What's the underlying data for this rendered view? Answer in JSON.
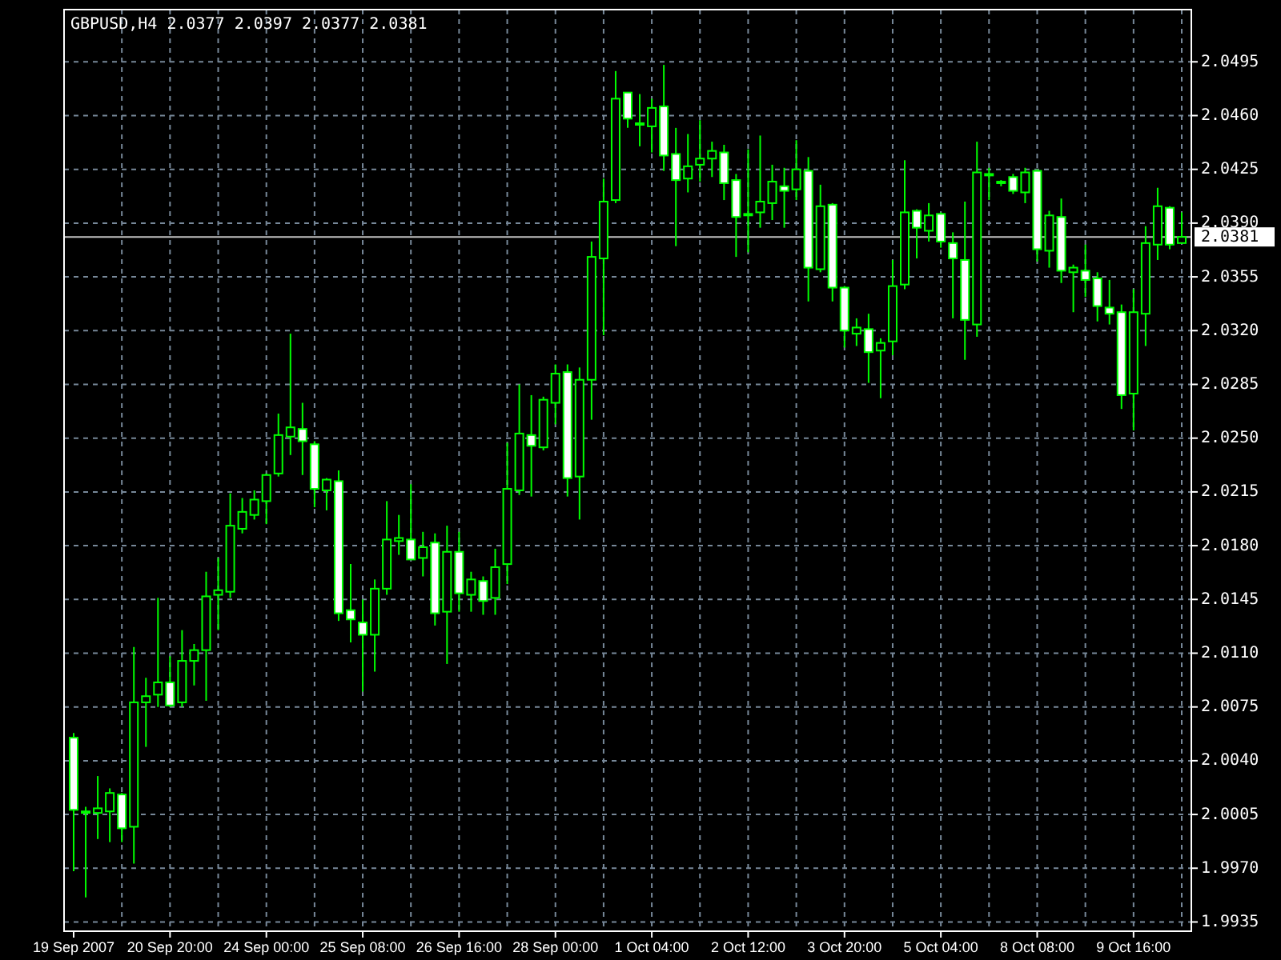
{
  "chart_data": {
    "type": "candlestick",
    "title": "GBPUSD,H4  2.0377 2.0397 2.0377 2.0381",
    "color": "#00ff00",
    "grid": true,
    "categories": [
      "19 Sep 2007",
      null,
      null,
      null,
      null,
      null,
      null,
      null,
      "20 Sep 20:00",
      null,
      null,
      null,
      null,
      null,
      null,
      null,
      "24 Sep 00:00",
      null,
      null,
      null,
      null,
      null,
      null,
      null,
      "25 Sep 08:00",
      null,
      null,
      null,
      null,
      null,
      null,
      null,
      "26 Sep 16:00",
      null,
      null,
      null,
      null,
      null,
      null,
      null,
      "28 Sep 00:00",
      null,
      null,
      null,
      null,
      null,
      null,
      null,
      "1 Oct 04:00",
      null,
      null,
      null,
      null,
      null,
      null,
      null,
      "2 Oct 12:00",
      null,
      null,
      null,
      null,
      null,
      null,
      null,
      "3 Oct 20:00",
      null,
      null,
      null,
      null,
      null,
      null,
      null,
      "5 Oct 04:00",
      null,
      null,
      null,
      null,
      null,
      null,
      null,
      "8 Oct 08:00",
      null,
      null,
      null,
      null,
      null,
      null,
      null,
      "9 Oct 16:00",
      null,
      null,
      null,
      null
    ],
    "ohlc": [
      [
        2.0055,
        2.0058,
        1.9968,
        2.0008
      ],
      [
        2.0006,
        2.001,
        1.9951,
        2.0007
      ],
      [
        2.0006,
        2.003,
        1.9989,
        2.0009
      ],
      [
        2.0007,
        2.0022,
        1.9987,
        2.0019
      ],
      [
        2.0018,
        2.0019,
        1.9987,
        1.9996
      ],
      [
        1.9997,
        2.0114,
        1.9973,
        2.0078
      ],
      [
        2.0078,
        2.0094,
        2.0049,
        2.0082
      ],
      [
        2.0083,
        2.0146,
        2.0075,
        2.0091
      ],
      [
        2.0091,
        2.0108,
        2.0075,
        2.0076
      ],
      [
        2.0078,
        2.0125,
        2.0075,
        2.0105
      ],
      [
        2.0105,
        2.0116,
        2.0089,
        2.0112
      ],
      [
        2.0112,
        2.0163,
        2.0079,
        2.0147
      ],
      [
        2.0148,
        2.0172,
        2.0125,
        2.0151
      ],
      [
        2.015,
        2.0214,
        2.0146,
        2.0193
      ],
      [
        2.0191,
        2.0211,
        2.0188,
        2.0202
      ],
      [
        2.02,
        2.0216,
        2.0197,
        2.021
      ],
      [
        2.0209,
        2.0227,
        2.0194,
        2.0226
      ],
      [
        2.0227,
        2.0266,
        2.0225,
        2.0252
      ],
      [
        2.0251,
        2.0318,
        2.0239,
        2.0257
      ],
      [
        2.0256,
        2.0273,
        2.0226,
        2.0248
      ],
      [
        2.0246,
        2.0248,
        2.0205,
        2.0217
      ],
      [
        2.0216,
        2.0224,
        2.0203,
        2.0223
      ],
      [
        2.0222,
        2.0229,
        2.0131,
        2.0136
      ],
      [
        2.0138,
        2.0168,
        2.0117,
        2.0132
      ],
      [
        2.013,
        2.0145,
        2.0085,
        2.0122
      ],
      [
        2.0122,
        2.0158,
        2.0098,
        2.0152
      ],
      [
        2.0152,
        2.0209,
        2.0148,
        2.0184
      ],
      [
        2.0183,
        2.02,
        2.0174,
        2.0185
      ],
      [
        2.0184,
        2.022,
        2.0171,
        2.0171
      ],
      [
        2.0172,
        2.0189,
        2.016,
        2.0179
      ],
      [
        2.0182,
        2.0188,
        2.0128,
        2.0136
      ],
      [
        2.0137,
        2.0193,
        2.0103,
        2.0176
      ],
      [
        2.0176,
        2.0189,
        2.0137,
        2.0149
      ],
      [
        2.0148,
        2.0163,
        2.0137,
        2.0158
      ],
      [
        2.0157,
        2.016,
        2.0135,
        2.0144
      ],
      [
        2.0146,
        2.0178,
        2.0135,
        2.0166
      ],
      [
        2.0168,
        2.0247,
        2.0155,
        2.0217
      ],
      [
        2.0216,
        2.0285,
        2.0213,
        2.0253
      ],
      [
        2.0252,
        2.0278,
        2.0212,
        2.0245
      ],
      [
        2.0244,
        2.0277,
        2.0242,
        2.0275
      ],
      [
        2.0273,
        2.0298,
        2.0259,
        2.0292
      ],
      [
        2.0293,
        2.0298,
        2.0212,
        2.0224
      ],
      [
        2.0225,
        2.0296,
        2.0197,
        2.0288
      ],
      [
        2.0288,
        2.0378,
        2.0262,
        2.0368
      ],
      [
        2.0367,
        2.0419,
        2.0317,
        2.0404
      ],
      [
        2.0405,
        2.0489,
        2.0403,
        2.0471
      ],
      [
        2.0475,
        2.0475,
        2.0452,
        2.0458
      ],
      [
        2.0454,
        2.0474,
        2.044,
        2.0455
      ],
      [
        2.0453,
        2.0471,
        2.0436,
        2.0465
      ],
      [
        2.0466,
        2.0493,
        2.0424,
        2.0434
      ],
      [
        2.0435,
        2.0452,
        2.0375,
        2.0418
      ],
      [
        2.0419,
        2.0448,
        2.041,
        2.0427
      ],
      [
        2.0428,
        2.0457,
        2.0417,
        2.0432
      ],
      [
        2.0432,
        2.0443,
        2.042,
        2.0437
      ],
      [
        2.0436,
        2.0441,
        2.0405,
        2.0416
      ],
      [
        2.0418,
        2.0422,
        2.0368,
        2.0394
      ],
      [
        2.0395,
        2.0438,
        2.0371,
        2.0396
      ],
      [
        2.0397,
        2.0447,
        2.0387,
        2.0404
      ],
      [
        2.0403,
        2.0428,
        2.0392,
        2.0417
      ],
      [
        2.0414,
        2.0426,
        2.0387,
        2.0411
      ],
      [
        2.0412,
        2.0444,
        2.0405,
        2.0425
      ],
      [
        2.0424,
        2.0433,
        2.0339,
        2.0361
      ],
      [
        2.036,
        2.0415,
        2.0358,
        2.0401
      ],
      [
        2.0402,
        2.0403,
        2.0339,
        2.0348
      ],
      [
        2.0348,
        2.0349,
        2.0309,
        2.032
      ],
      [
        2.0318,
        2.0328,
        2.031,
        2.0322
      ],
      [
        2.0321,
        2.0331,
        2.0286,
        2.0306
      ],
      [
        2.0307,
        2.0315,
        2.0276,
        2.0312
      ],
      [
        2.0313,
        2.0366,
        2.0304,
        2.0349
      ],
      [
        2.035,
        2.0431,
        2.0347,
        2.0397
      ],
      [
        2.0398,
        2.0399,
        2.0367,
        2.0387
      ],
      [
        2.0385,
        2.0403,
        2.0378,
        2.0395
      ],
      [
        2.0396,
        2.0397,
        2.0374,
        2.0378
      ],
      [
        2.0377,
        2.0384,
        2.0328,
        2.0367
      ],
      [
        2.0366,
        2.0404,
        2.0301,
        2.0327
      ],
      [
        2.0324,
        2.0443,
        2.0316,
        2.0423
      ],
      [
        2.0421,
        2.0426,
        2.0405,
        2.0422
      ],
      [
        2.0416,
        2.0418,
        2.0414,
        2.0417
      ],
      [
        2.042,
        2.0422,
        2.0409,
        2.0411
      ],
      [
        2.041,
        2.0426,
        2.0403,
        2.0423
      ],
      [
        2.0424,
        2.0425,
        2.0365,
        2.0373
      ],
      [
        2.0372,
        2.0398,
        2.0361,
        2.0395
      ],
      [
        2.0394,
        2.0406,
        2.0351,
        2.0359
      ],
      [
        2.0358,
        2.0363,
        2.0332,
        2.0361
      ],
      [
        2.0359,
        2.0376,
        2.0342,
        2.0353
      ],
      [
        2.0354,
        2.0358,
        2.0326,
        2.0336
      ],
      [
        2.0335,
        2.0353,
        2.0324,
        2.0331
      ],
      [
        2.0332,
        2.0337,
        2.0269,
        2.0278
      ],
      [
        2.0279,
        2.0347,
        2.0255,
        2.0332
      ],
      [
        2.0331,
        2.0388,
        2.031,
        2.0377
      ],
      [
        2.0376,
        2.0413,
        2.0366,
        2.0401
      ],
      [
        2.04,
        2.0401,
        2.0373,
        2.0376
      ],
      [
        2.0377,
        2.0397,
        2.0377,
        2.0381
      ]
    ],
    "ylim": [
      1.9929,
      2.0529
    ],
    "yticks": [
      1.9935,
      {
        "value": 1.997,
        "label": "1.9970"
      },
      2.0005,
      {
        "value": 2.004,
        "label": "2.0040"
      },
      2.0075,
      {
        "value": 2.011,
        "label": "2.0110"
      },
      2.0145,
      {
        "value": 2.018,
        "label": "2.0180"
      },
      2.0215,
      {
        "value": 2.025,
        "label": "2.0250"
      },
      2.0285,
      {
        "value": 2.032,
        "label": "2.0320"
      },
      2.0355,
      {
        "value": 2.039,
        "label": "2.0390"
      },
      2.0425,
      {
        "value": 2.046,
        "label": "2.0460"
      },
      2.0495
    ],
    "ref_lines": [
      {
        "axis": "y",
        "value": 2.0381,
        "label": "2.0381",
        "color": "#c0c0c0"
      }
    ]
  }
}
